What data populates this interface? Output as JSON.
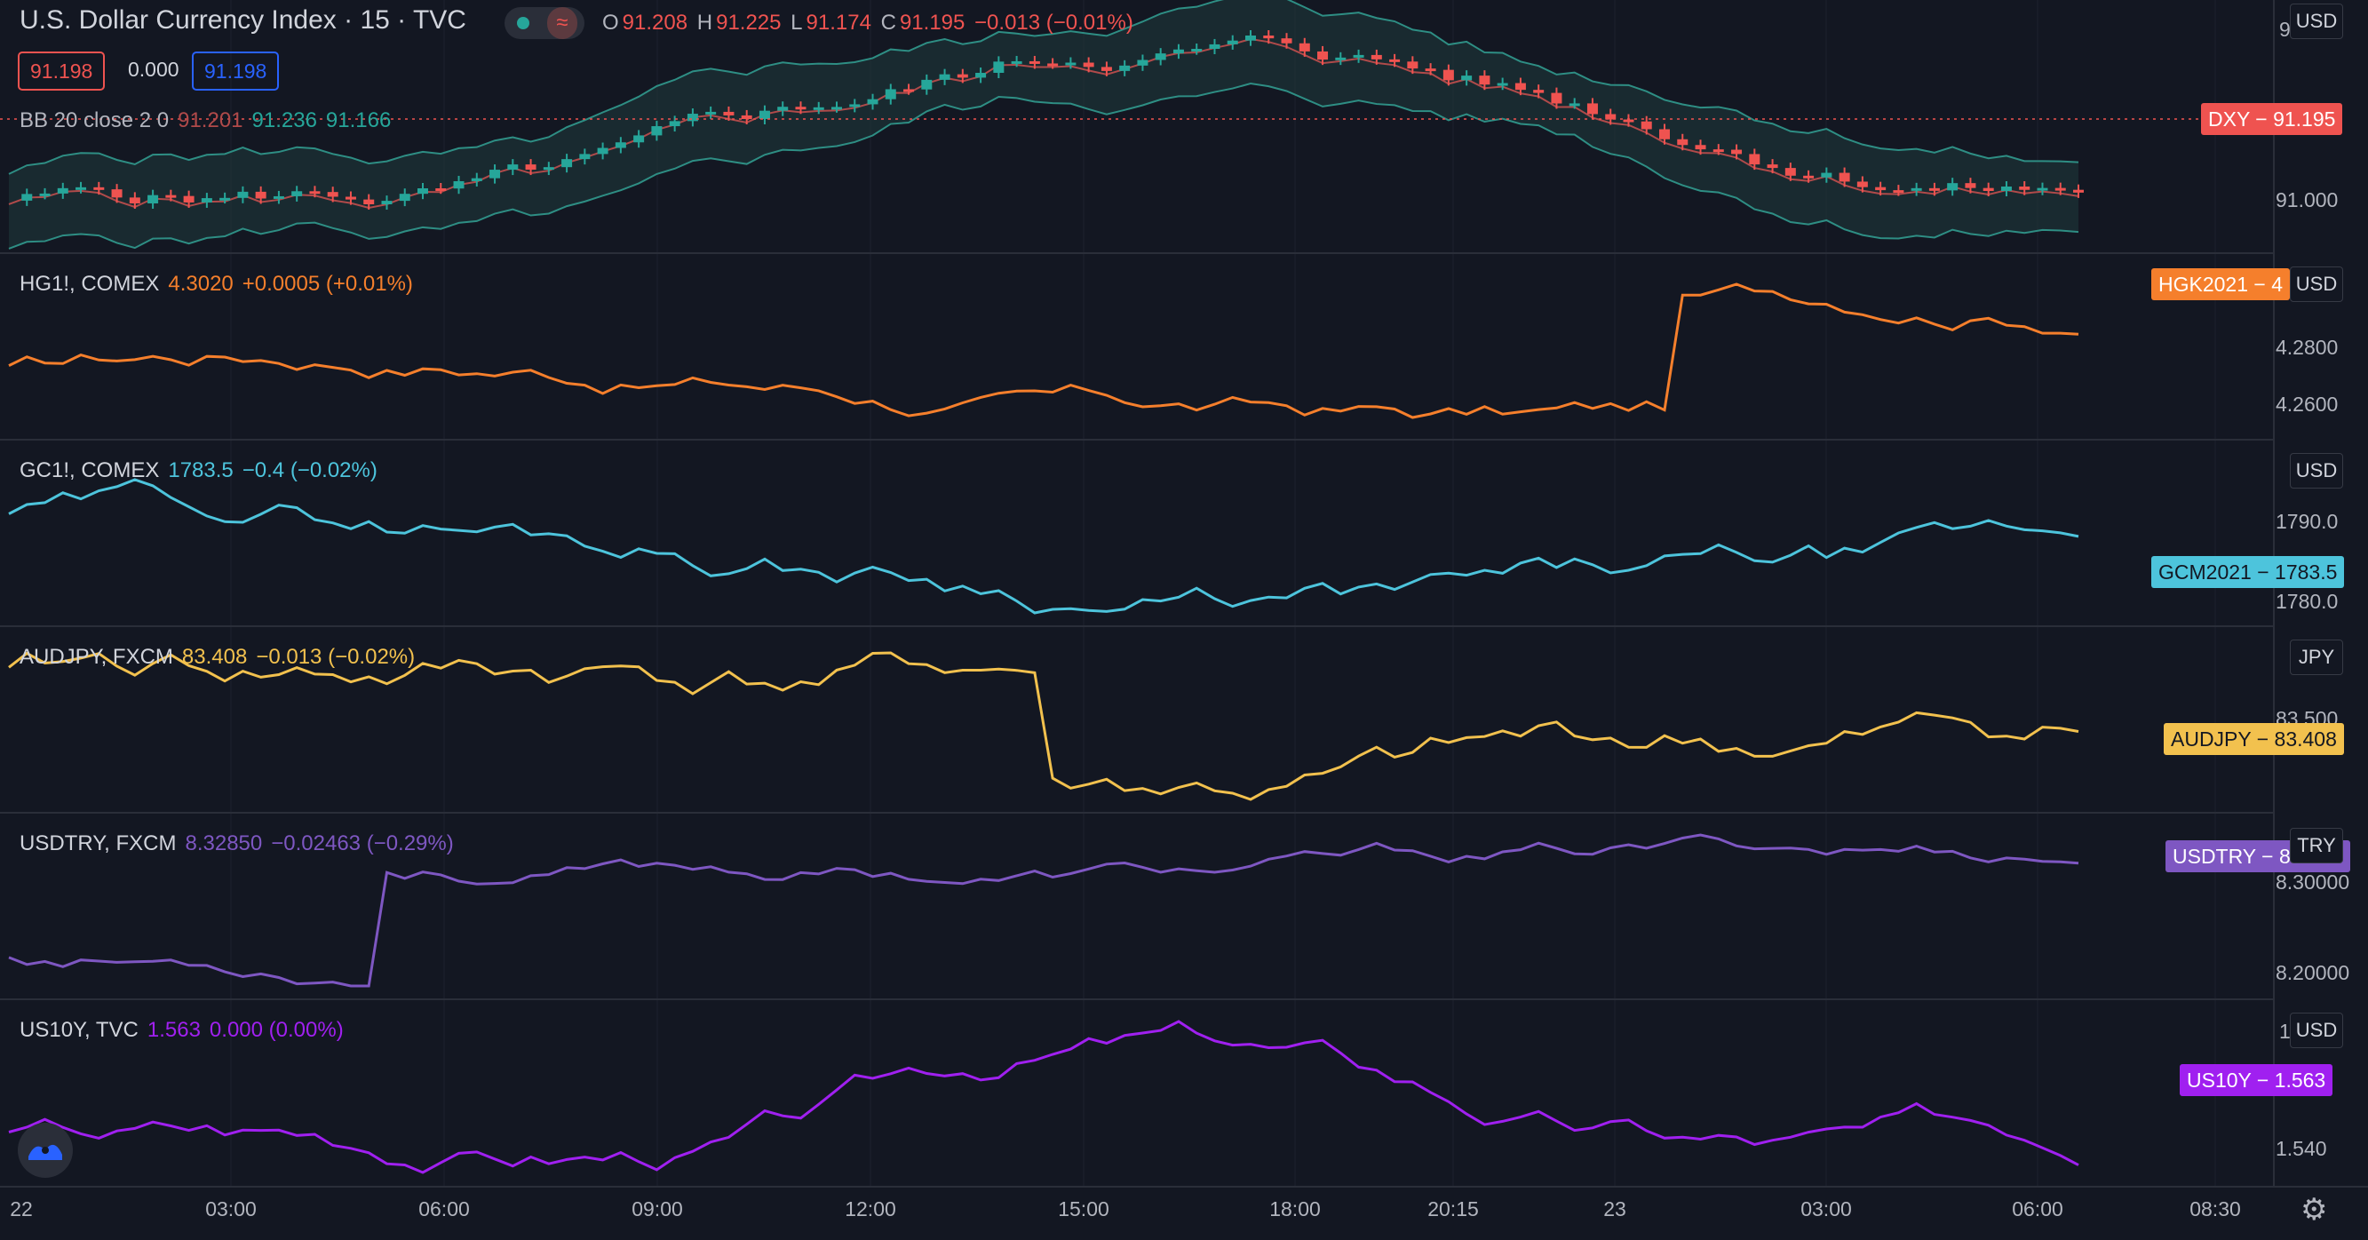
{
  "colors": {
    "bg": "#131722",
    "grid": "#1e222d",
    "separator": "#2a2e39",
    "up": "#26a69a",
    "down": "#ef5350",
    "hg": "#f57f2c",
    "gc": "#4dc4dc",
    "aud": "#f2c14e",
    "try": "#7e57c2",
    "us10y": "#a020f0",
    "bb_band": "#2e8e84",
    "bb_basis": "#b04a4a"
  },
  "main": {
    "title": "U.S. Dollar Currency Index · 15 · TVC",
    "ohlc": {
      "o_label": "O",
      "o": "91.208",
      "h_label": "H",
      "h": "91.225",
      "l_label": "L",
      "l": "91.174",
      "c_label": "C",
      "c": "91.195",
      "change": "−0.013 (−0.01%)"
    },
    "bid": "91.198",
    "spread": "0.000",
    "ask": "91.198",
    "bb": {
      "label": "BB 20 close 2 0",
      "basis": "91.201",
      "upper": "91.236",
      "lower": "91.166"
    },
    "currency": "USD",
    "axis": [
      "91.000"
    ],
    "axis_cut": "91.…",
    "tag": "DXY − 91.195"
  },
  "panes": [
    {
      "symbol": "HG1!, COMEX",
      "last": "4.3020",
      "change": "+0.0005 (+0.01%)",
      "currency": "USD",
      "tag": "HGK2021 − 4",
      "axis": [
        "4.2800",
        "4.2600"
      ]
    },
    {
      "symbol": "GC1!, COMEX",
      "last": "1783.5",
      "change": "−0.4 (−0.02%)",
      "currency": "USD",
      "tag": "GCM2021 − 1783.5",
      "axis": [
        "1790.0",
        "1780.0"
      ]
    },
    {
      "symbol": "AUDJPY, FXCM",
      "last": "83.408",
      "change": "−0.013 (−0.02%)",
      "currency": "JPY",
      "tag": "AUDJPY − 83.408",
      "axis": [
        "83.500"
      ]
    },
    {
      "symbol": "USDTRY, FXCM",
      "last": "8.32850",
      "change": "−0.02463 (−0.29%)",
      "currency": "TRY",
      "tag": "USDTRY − 8.",
      "tag_end": "0",
      "axis": [
        "8.30000",
        "8.20000"
      ]
    },
    {
      "symbol": "US10Y, TVC",
      "last": "1.563",
      "change": "0.000 (0.00%)",
      "currency": "USD",
      "tag": "US10Y − 1.563",
      "axis": [
        "1.540"
      ],
      "axis_cut": "1"
    }
  ],
  "time_axis": [
    "22",
    "03:00",
    "06:00",
    "09:00",
    "12:00",
    "15:00",
    "18:00",
    "20:15",
    "23",
    "03:00",
    "06:00",
    "08:30"
  ],
  "icons": {
    "logo": "tradingview-logo-icon",
    "settings": "gear-icon"
  }
}
